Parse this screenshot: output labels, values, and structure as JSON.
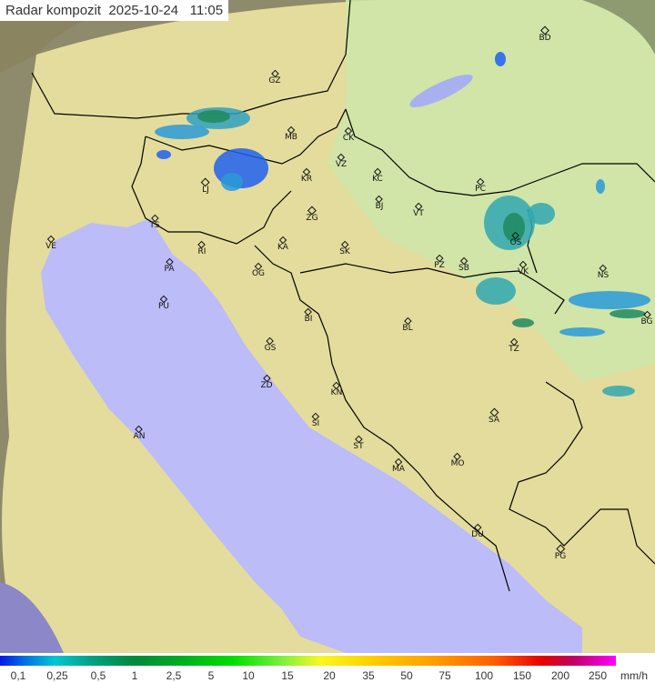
{
  "title": "Radar kompozit  2025-10-24   11:05",
  "legend": {
    "ticks": [
      "0,1",
      "0,25",
      "0,5",
      "1",
      "2,5",
      "5",
      "10",
      "15",
      "20",
      "35",
      "50",
      "75",
      "100",
      "150",
      "200",
      "250"
    ],
    "unit": "mm/h"
  },
  "cities": [
    "GZ",
    "MB",
    "CK",
    "VZ",
    "KR",
    "KC",
    "LJ",
    "BJ",
    "ZG",
    "VT",
    "TS",
    "VE",
    "RI",
    "KA",
    "SK",
    "PA",
    "OG",
    "PZ",
    "SB",
    "PC",
    "OS",
    "VK",
    "NS",
    "BG",
    "PU",
    "BI",
    "BL",
    "TZ",
    "GS",
    "ZD",
    "KN",
    "SA",
    "SI",
    "AN",
    "ST",
    "MA",
    "MO",
    "DU",
    "PG",
    "BD"
  ],
  "colors": {
    "sea": "#bcbcf8",
    "land": "#e4dc9c",
    "plain": "#cde6a8",
    "outside": "#8e8a6c",
    "border": "#000000"
  }
}
